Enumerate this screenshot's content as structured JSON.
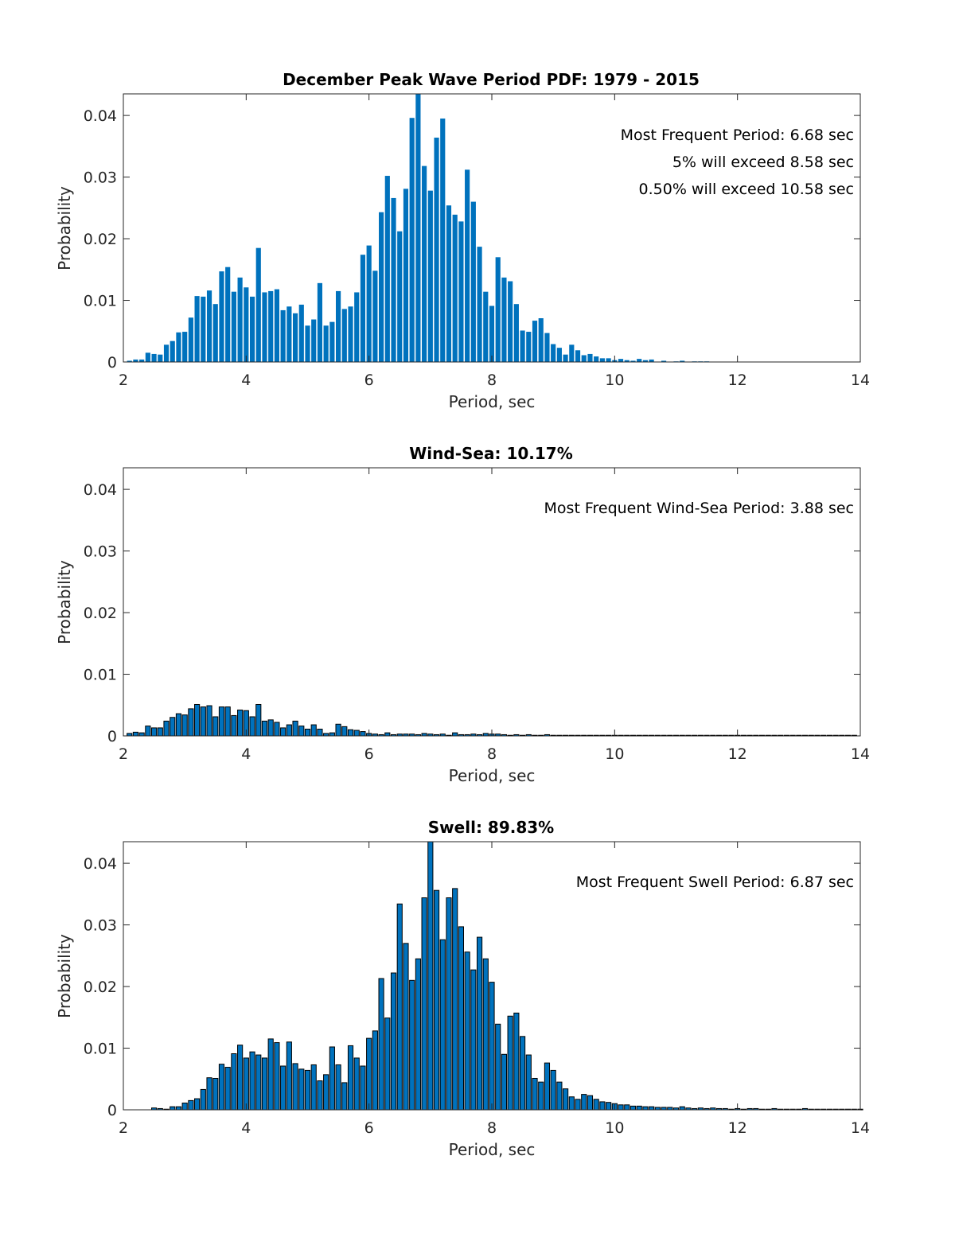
{
  "chart_data": [
    {
      "type": "bar",
      "title": "December Peak Wave Period PDF: 1979 - 2015",
      "xlabel": "Period, sec",
      "ylabel": "Probability",
      "xlim": [
        2,
        14
      ],
      "ylim": [
        0,
        0.0435
      ],
      "xticks": [
        "2",
        "4",
        "6",
        "8",
        "10",
        "12",
        "14"
      ],
      "yticks": [
        "0",
        "0.01",
        "0.02",
        "0.03",
        "0.04"
      ],
      "bar_color": "#0072bd",
      "bar_edge": false,
      "bin_start": 2.1,
      "bin_width": 0.1,
      "annotations": [
        "Most Frequent Period: 6.68 sec",
        "5% will exceed 8.58 sec",
        "0.50% will exceed 10.58 sec"
      ],
      "values": [
        0.0002,
        0.0004,
        0.0004,
        0.0015,
        0.0013,
        0.0012,
        0.0028,
        0.0034,
        0.0048,
        0.0049,
        0.0072,
        0.0107,
        0.0106,
        0.0116,
        0.0094,
        0.0147,
        0.0154,
        0.0114,
        0.0137,
        0.0121,
        0.0106,
        0.0185,
        0.0113,
        0.0115,
        0.0118,
        0.0084,
        0.009,
        0.0079,
        0.0093,
        0.0059,
        0.0069,
        0.0128,
        0.0059,
        0.0065,
        0.0115,
        0.0086,
        0.009,
        0.0113,
        0.0174,
        0.0189,
        0.0148,
        0.0243,
        0.0302,
        0.0266,
        0.0212,
        0.0281,
        0.0396,
        0.0435,
        0.0318,
        0.0278,
        0.0364,
        0.0395,
        0.0254,
        0.0239,
        0.0228,
        0.0312,
        0.026,
        0.0187,
        0.0114,
        0.0091,
        0.017,
        0.0137,
        0.0131,
        0.0094,
        0.0051,
        0.0049,
        0.0067,
        0.0071,
        0.0047,
        0.0029,
        0.0023,
        0.0012,
        0.0028,
        0.0019,
        0.0011,
        0.0013,
        0.0009,
        0.0006,
        0.0006,
        0.0003,
        0.0005,
        0.0003,
        0.0002,
        0.0005,
        0.0003,
        0.0004,
        0,
        0.0002,
        0,
        0.0001,
        0.0002,
        0,
        0.0001,
        0.0001,
        0.0001
      ]
    },
    {
      "type": "bar",
      "title": "Wind-Sea: 10.17%",
      "xlabel": "Period, sec",
      "ylabel": "Probability",
      "xlim": [
        2,
        14
      ],
      "ylim": [
        0,
        0.0435
      ],
      "xticks": [
        "2",
        "4",
        "6",
        "8",
        "10",
        "12",
        "14"
      ],
      "yticks": [
        "0",
        "0.01",
        "0.02",
        "0.03",
        "0.04"
      ],
      "bar_color": "#0072bd",
      "bar_edge": true,
      "bin_start": 2.1,
      "bin_width": 0.1,
      "annotations": [
        "Most Frequent Wind-Sea Period: 3.88 sec"
      ],
      "values": [
        0.0004,
        0.0006,
        0.0005,
        0.0016,
        0.0013,
        0.0013,
        0.0024,
        0.003,
        0.0036,
        0.0034,
        0.0044,
        0.0051,
        0.0047,
        0.0049,
        0.0031,
        0.0047,
        0.0047,
        0.0033,
        0.0042,
        0.0041,
        0.0031,
        0.0051,
        0.0024,
        0.0026,
        0.0022,
        0.0013,
        0.0018,
        0.0024,
        0.0016,
        0.0011,
        0.0018,
        0.0011,
        0.0004,
        0.0005,
        0.0019,
        0.0015,
        0.001,
        0.0009,
        0.0007,
        0.0004,
        0.0003,
        0.0002,
        0.0005,
        0.0002,
        0.0003,
        0.0003,
        0.0003,
        0.0002,
        0.0004,
        0.0003,
        0.0002,
        0.0003,
        0.0001,
        0.0005,
        0.0002,
        0.0002,
        0.0003,
        0.0002,
        0.0004,
        0.0003,
        0.0003,
        0.0002,
        0.0001,
        0.0002,
        0.0001,
        0.0002,
        0.0001,
        0.0001,
        0.0002,
        0.0001,
        0.0001,
        0.0001,
        0.0001,
        0.0001,
        0.0001,
        0.0001,
        0.0001,
        0.0001,
        0.0001,
        0.0001,
        0.0001,
        0.0001,
        0.0001,
        0.0001,
        0.0001,
        0.0001,
        0.0001,
        0.0001,
        0.0001,
        0.0001,
        0.0001,
        0.0001,
        0.0001,
        0.0001,
        0.0001,
        0.0001,
        0.0001,
        0.0001,
        0.0001,
        0.0001,
        0.0001,
        0.0001,
        0.0001,
        0.0001,
        0.0001,
        0.0001,
        0.0001,
        0.0001,
        0.0001,
        0.0001,
        0.0001,
        0.0001,
        0.0001,
        0.0001,
        0.0001,
        0.0001,
        0.0001,
        0.0001,
        0.0001
      ]
    },
    {
      "type": "bar",
      "title": "Swell: 89.83%",
      "xlabel": "Period, sec",
      "ylabel": "Probability",
      "xlim": [
        2,
        14
      ],
      "ylim": [
        0,
        0.0435
      ],
      "xticks": [
        "2",
        "4",
        "6",
        "8",
        "10",
        "12",
        "14"
      ],
      "yticks": [
        "0",
        "0.01",
        "0.02",
        "0.03",
        "0.04"
      ],
      "bar_color": "#0072bd",
      "bar_edge": true,
      "bin_start": 2.1,
      "bin_width": 0.1,
      "annotations": [
        "Most Frequent Swell Period: 6.87 sec"
      ],
      "values": [
        0,
        0,
        0,
        0,
        0.0003,
        0.0002,
        0.0001,
        0.0005,
        0.0005,
        0.0011,
        0.0015,
        0.0018,
        0.0033,
        0.0052,
        0.0051,
        0.0074,
        0.0069,
        0.0091,
        0.0105,
        0.0084,
        0.0094,
        0.0089,
        0.0084,
        0.0115,
        0.0109,
        0.0071,
        0.011,
        0.0075,
        0.0066,
        0.0064,
        0.0073,
        0.0047,
        0.0057,
        0.0102,
        0.0073,
        0.0044,
        0.0104,
        0.0084,
        0.0071,
        0.0116,
        0.0128,
        0.0213,
        0.0149,
        0.0222,
        0.0334,
        0.027,
        0.021,
        0.0245,
        0.0344,
        0.0437,
        0.0356,
        0.0276,
        0.0344,
        0.0359,
        0.0297,
        0.0256,
        0.0227,
        0.028,
        0.0245,
        0.0207,
        0.0139,
        0.009,
        0.0152,
        0.0157,
        0.0119,
        0.0089,
        0.0051,
        0.0045,
        0.0076,
        0.0064,
        0.0045,
        0.0034,
        0.0021,
        0.0017,
        0.0025,
        0.0023,
        0.0017,
        0.0013,
        0.0012,
        0.001,
        0.0008,
        0.0008,
        0.0006,
        0.0006,
        0.0005,
        0.0005,
        0.0004,
        0.0004,
        0.0004,
        0.0003,
        0.0005,
        0.0003,
        0.0002,
        0.0003,
        0.0002,
        0.0003,
        0.0002,
        0.0002,
        0.0001,
        0.0002,
        0.0001,
        0.0002,
        0.0002,
        0.0001,
        0.0001,
        0.0002,
        0.0001,
        0.0001,
        0.0001,
        0.0001,
        0.0002,
        0.0001,
        0.0001,
        0.0001,
        0.0001,
        0.0001,
        0.0001,
        0.0001,
        0.0001,
        0.0001
      ]
    }
  ]
}
